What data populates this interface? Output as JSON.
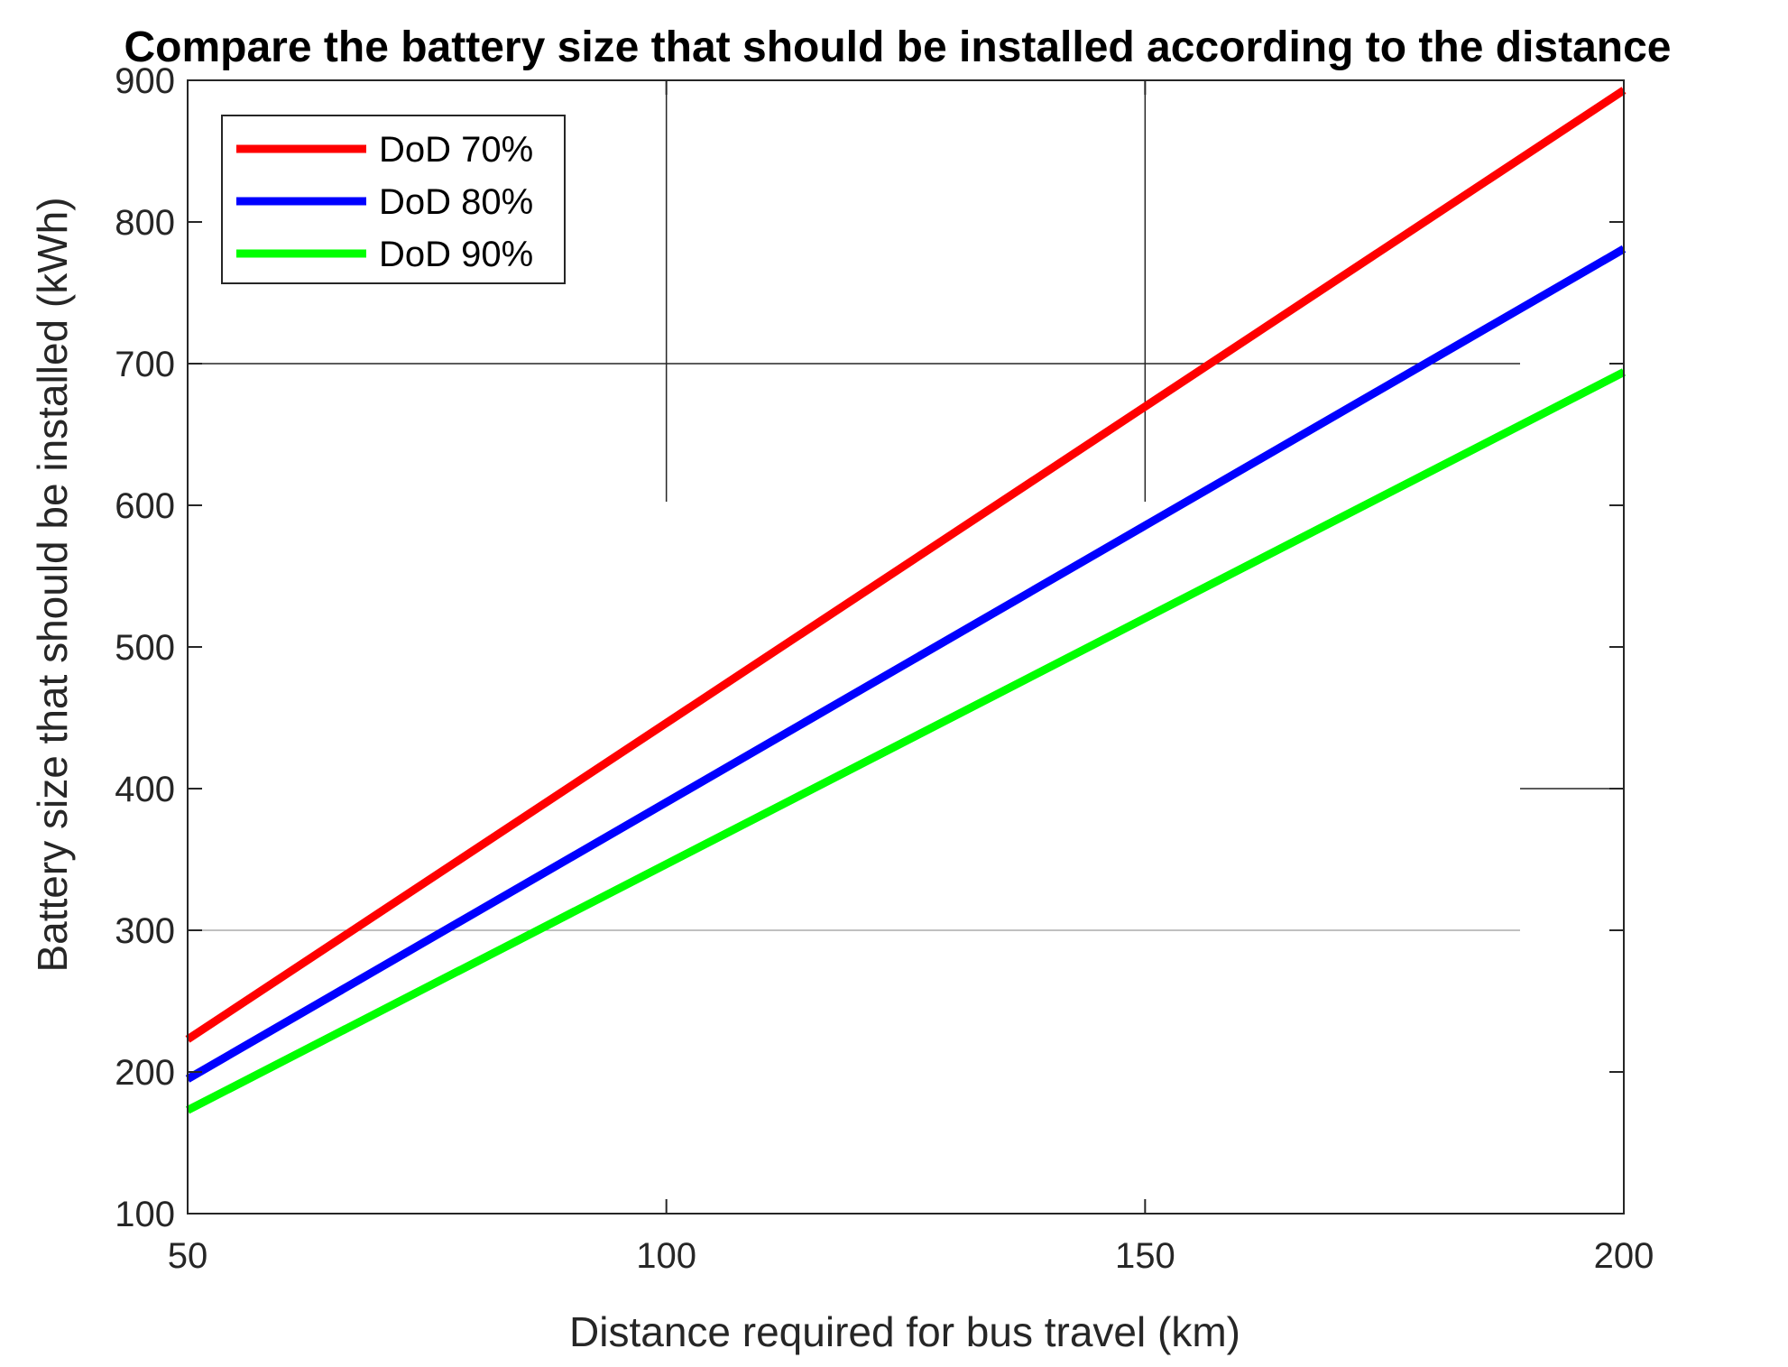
{
  "chart_data": {
    "type": "line",
    "title": "Compare the battery size that should be installed according to the distance",
    "xlabel": "Distance required for bus travel (km)",
    "ylabel": "Battery size that should be installed (kWh)",
    "xlim": [
      50,
      200
    ],
    "ylim": [
      100,
      900
    ],
    "xticks": [
      50,
      100,
      150,
      200
    ],
    "yticks": [
      100,
      200,
      300,
      400,
      500,
      600,
      700,
      800,
      900
    ],
    "grid": "partial",
    "legend_position": "top-left",
    "x": [
      50,
      200
    ],
    "series": [
      {
        "name": "DoD 70%",
        "color": "#ff0000",
        "values": [
          223,
          893
        ]
      },
      {
        "name": "DoD 80%",
        "color": "#0000ff",
        "values": [
          195,
          781
        ]
      },
      {
        "name": "DoD 90%",
        "color": "#00ff00",
        "values": [
          173,
          694
        ]
      }
    ]
  }
}
